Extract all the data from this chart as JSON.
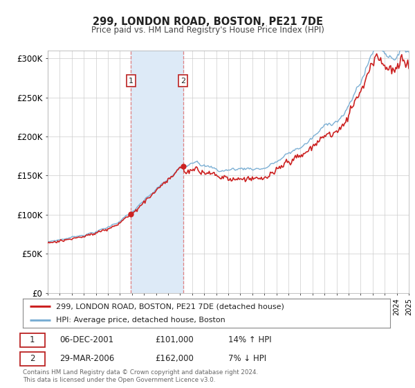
{
  "title": "299, LONDON ROAD, BOSTON, PE21 7DE",
  "subtitle": "Price paid vs. HM Land Registry's House Price Index (HPI)",
  "ylim": [
    0,
    310000
  ],
  "yticks": [
    0,
    50000,
    100000,
    150000,
    200000,
    250000,
    300000
  ],
  "ytick_labels": [
    "£0",
    "£50K",
    "£100K",
    "£150K",
    "£200K",
    "£250K",
    "£300K"
  ],
  "x_start_year": 1995,
  "x_end_year": 2025,
  "sale1_date": 2001.92,
  "sale1_value": 101000,
  "sale2_date": 2006.245,
  "sale2_value": 162000,
  "hpi_color": "#7bafd4",
  "property_color": "#cc2222",
  "shaded_color": "#ddeaf7",
  "dashed_line_color": "#e08080",
  "legend_label_property": "299, LONDON ROAD, BOSTON, PE21 7DE (detached house)",
  "legend_label_hpi": "HPI: Average price, detached house, Boston",
  "table_row1": [
    "1",
    "06-DEC-2001",
    "£101,000",
    "14% ↑ HPI"
  ],
  "table_row2": [
    "2",
    "29-MAR-2006",
    "£162,000",
    "7% ↓ HPI"
  ],
  "footer": "Contains HM Land Registry data © Crown copyright and database right 2024.\nThis data is licensed under the Open Government Licence v3.0.",
  "background_color": "#ffffff",
  "grid_color": "#cccccc"
}
